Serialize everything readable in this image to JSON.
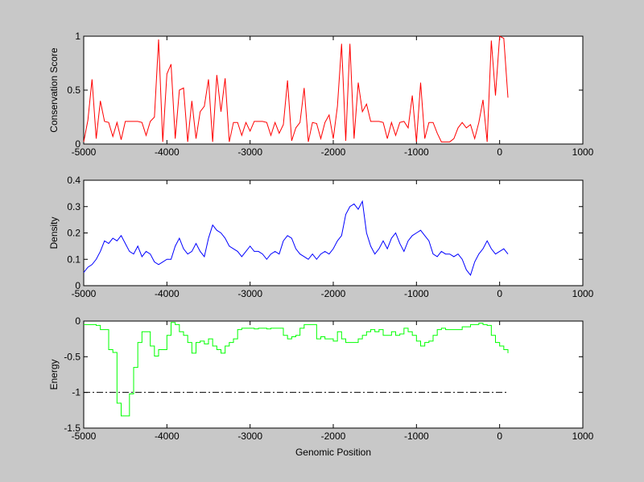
{
  "chart_data": [
    {
      "type": "line",
      "ylabel": "Conservation Score",
      "xlabel": "",
      "xlim": [
        -5000,
        1000
      ],
      "ylim": [
        0,
        1
      ],
      "xticks": [
        -5000,
        -4000,
        -3000,
        -2000,
        -1000,
        0,
        1000
      ],
      "yticks": [
        0,
        0.5,
        1
      ],
      "ytick_labels": [
        "0",
        "0.5",
        "1"
      ],
      "color": "#ff0000",
      "x_start": -5000,
      "x_step": 50,
      "values": [
        0.02,
        0.22,
        0.6,
        0.05,
        0.4,
        0.21,
        0.2,
        0.07,
        0.2,
        0.04,
        0.21,
        0.21,
        0.21,
        0.21,
        0.2,
        0.08,
        0.21,
        0.25,
        0.97,
        0.02,
        0.65,
        0.74,
        0.05,
        0.5,
        0.52,
        0.02,
        0.4,
        0.05,
        0.3,
        0.35,
        0.6,
        0.02,
        0.64,
        0.3,
        0.61,
        0.02,
        0.2,
        0.2,
        0.08,
        0.2,
        0.12,
        0.21,
        0.21,
        0.21,
        0.2,
        0.08,
        0.2,
        0.1,
        0.18,
        0.59,
        0.03,
        0.15,
        0.2,
        0.52,
        0.02,
        0.2,
        0.19,
        0.05,
        0.2,
        0.27,
        0.05,
        0.35,
        0.93,
        0.03,
        0.93,
        0.05,
        0.57,
        0.3,
        0.37,
        0.21,
        0.21,
        0.21,
        0.2,
        0.05,
        0.2,
        0.08,
        0.2,
        0.21,
        0.15,
        0.45,
        0.02,
        0.57,
        0.05,
        0.2,
        0.2,
        0.1,
        0.02,
        0.02,
        0.02,
        0.05,
        0.15,
        0.2,
        0.15,
        0.18,
        0.05,
        0.2,
        0.41,
        0.02,
        0.96,
        0.45,
        1.0,
        0.98,
        0.43
      ],
      "step": false
    },
    {
      "type": "line",
      "ylabel": "Density",
      "xlabel": "",
      "xlim": [
        -5000,
        1000
      ],
      "ylim": [
        0,
        0.4
      ],
      "xticks": [
        -5000,
        -4000,
        -3000,
        -2000,
        -1000,
        0,
        1000
      ],
      "yticks": [
        0,
        0.1,
        0.2,
        0.3,
        0.4
      ],
      "ytick_labels": [
        "0",
        "0.1",
        "0.2",
        "0.3",
        "0.4"
      ],
      "color": "#0000ff",
      "x_start": -5000,
      "x_step": 50,
      "values": [
        0.05,
        0.07,
        0.08,
        0.1,
        0.13,
        0.17,
        0.16,
        0.18,
        0.17,
        0.19,
        0.16,
        0.13,
        0.12,
        0.15,
        0.11,
        0.13,
        0.12,
        0.09,
        0.08,
        0.09,
        0.1,
        0.1,
        0.15,
        0.18,
        0.14,
        0.12,
        0.13,
        0.16,
        0.13,
        0.11,
        0.18,
        0.23,
        0.21,
        0.2,
        0.18,
        0.15,
        0.14,
        0.13,
        0.11,
        0.13,
        0.15,
        0.13,
        0.13,
        0.12,
        0.1,
        0.12,
        0.13,
        0.12,
        0.17,
        0.19,
        0.18,
        0.14,
        0.12,
        0.11,
        0.1,
        0.12,
        0.1,
        0.12,
        0.13,
        0.12,
        0.14,
        0.17,
        0.19,
        0.27,
        0.3,
        0.31,
        0.29,
        0.32,
        0.2,
        0.15,
        0.12,
        0.14,
        0.17,
        0.14,
        0.18,
        0.2,
        0.16,
        0.13,
        0.17,
        0.19,
        0.2,
        0.21,
        0.19,
        0.17,
        0.12,
        0.11,
        0.13,
        0.12,
        0.12,
        0.11,
        0.12,
        0.1,
        0.06,
        0.04,
        0.09,
        0.12,
        0.14,
        0.17,
        0.14,
        0.12,
        0.13,
        0.14,
        0.12
      ],
      "step": false
    },
    {
      "type": "line",
      "ylabel": "Energy",
      "xlabel": "Genomic Position",
      "xlim": [
        -5000,
        1000
      ],
      "ylim": [
        -1.5,
        0
      ],
      "xticks": [
        -5000,
        -4000,
        -3000,
        -2000,
        -1000,
        0,
        1000
      ],
      "yticks": [
        -1.5,
        -1,
        -0.5,
        0
      ],
      "ytick_labels": [
        "-1.5",
        "-1",
        "-0.5",
        "0"
      ],
      "color": "#00ff00",
      "x_start": -5000,
      "x_step": 50,
      "values": [
        -0.05,
        -0.05,
        -0.05,
        -0.06,
        -0.12,
        -0.12,
        -0.4,
        -0.44,
        -1.15,
        -1.33,
        -1.33,
        -1.02,
        -0.65,
        -0.3,
        -0.15,
        -0.15,
        -0.35,
        -0.49,
        -0.4,
        -0.4,
        -0.2,
        -0.02,
        -0.05,
        -0.15,
        -0.2,
        -0.3,
        -0.45,
        -0.3,
        -0.28,
        -0.32,
        -0.25,
        -0.35,
        -0.4,
        -0.45,
        -0.35,
        -0.3,
        -0.25,
        -0.12,
        -0.1,
        -0.1,
        -0.1,
        -0.11,
        -0.1,
        -0.1,
        -0.11,
        -0.1,
        -0.1,
        -0.1,
        -0.2,
        -0.25,
        -0.22,
        -0.2,
        -0.1,
        -0.05,
        -0.05,
        -0.05,
        -0.25,
        -0.22,
        -0.25,
        -0.25,
        -0.28,
        -0.15,
        -0.25,
        -0.3,
        -0.3,
        -0.3,
        -0.25,
        -0.2,
        -0.15,
        -0.12,
        -0.15,
        -0.12,
        -0.2,
        -0.2,
        -0.15,
        -0.2,
        -0.18,
        -0.1,
        -0.15,
        -0.2,
        -0.28,
        -0.35,
        -0.3,
        -0.28,
        -0.2,
        -0.12,
        -0.1,
        -0.12,
        -0.12,
        -0.12,
        -0.12,
        -0.08,
        -0.08,
        -0.05,
        -0.05,
        -0.03,
        -0.05,
        -0.06,
        -0.2,
        -0.3,
        -0.35,
        -0.4,
        -0.45
      ],
      "step": true,
      "reference_line": {
        "y": -1,
        "x_range": [
          -5000,
          100
        ],
        "style": "dash-dot",
        "color": "#000000"
      }
    }
  ]
}
